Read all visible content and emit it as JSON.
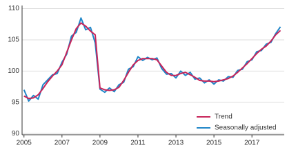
{
  "chart_data": {
    "type": "line",
    "x": [
      2005,
      2005.25,
      2005.5,
      2005.75,
      2006,
      2006.25,
      2006.5,
      2006.75,
      2007,
      2007.25,
      2007.5,
      2007.75,
      2008,
      2008.25,
      2008.5,
      2008.75,
      2009,
      2009.25,
      2009.5,
      2009.75,
      2010,
      2010.25,
      2010.5,
      2010.75,
      2011,
      2011.25,
      2011.5,
      2011.75,
      2012,
      2012.25,
      2012.5,
      2012.75,
      2013,
      2013.25,
      2013.5,
      2013.75,
      2014,
      2014.25,
      2014.5,
      2014.75,
      2015,
      2015.25,
      2015.5,
      2015.75,
      2016,
      2016.25,
      2016.5,
      2016.75,
      2017,
      2017.25,
      2017.5,
      2017.75,
      2018,
      2018.25,
      2018.5
    ],
    "series": [
      {
        "name": "Seasonally adjusted",
        "color": "#1f86c8",
        "values": [
          97,
          95.2,
          96.1,
          95.5,
          97.8,
          98.6,
          99.4,
          99.6,
          101.4,
          102.7,
          105.6,
          106.2,
          108.5,
          106.6,
          107,
          104.5,
          97.1,
          96.6,
          97.3,
          96.7,
          97.8,
          98.2,
          100.3,
          100.7,
          102.3,
          101.7,
          102.2,
          101.8,
          102.1,
          100.4,
          99.5,
          99.6,
          98.9,
          100,
          99.3,
          99.8,
          98.7,
          98.9,
          98.1,
          98.6,
          97.9,
          98.6,
          98.4,
          99.1,
          99,
          100.1,
          100.3,
          101.5,
          101.8,
          103.1,
          103.3,
          104.3,
          104.6,
          106,
          107.1
        ]
      },
      {
        "name": "Trend",
        "color": "#c8245a",
        "values": [
          96,
          95.6,
          95.7,
          96.2,
          97.2,
          98.3,
          99.2,
          100,
          101,
          103,
          105,
          106.8,
          107.7,
          107.2,
          106.4,
          105.8,
          97.3,
          97,
          96.9,
          97,
          97.4,
          98.5,
          99.8,
          101,
          101.7,
          102,
          102,
          102,
          101.8,
          100.8,
          99.8,
          99.3,
          99.3,
          99.6,
          99.8,
          99.4,
          99,
          98.5,
          98.4,
          98.4,
          98.3,
          98.4,
          98.6,
          98.8,
          99.2,
          99.8,
          100.5,
          101.2,
          102,
          102.8,
          103.5,
          104,
          104.8,
          105.8,
          106.5
        ]
      }
    ],
    "xlim": [
      2004.9,
      2018.7
    ],
    "xticks": [
      2005,
      2007,
      2009,
      2011,
      2013,
      2015,
      2017
    ],
    "ylim": [
      89.8,
      110.5
    ],
    "yticks": [
      90,
      95,
      100,
      105,
      110
    ],
    "grid": true,
    "legend": "lower right"
  }
}
